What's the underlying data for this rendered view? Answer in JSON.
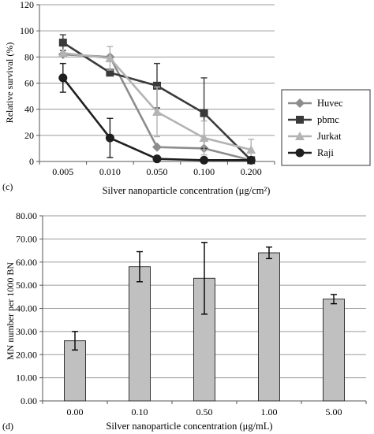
{
  "chart_data": [
    {
      "type": "line",
      "panel_label": "(c)",
      "xlabel": "Silver nanoparticle concentration (μg/cm²)",
      "ylabel": "Relative survival (%)",
      "categories": [
        "0.005",
        "0.010",
        "0.050",
        "0.100",
        "0.200"
      ],
      "ylim": [
        0,
        120
      ],
      "yticks": [
        0,
        20,
        40,
        60,
        80,
        100,
        120
      ],
      "grid": true,
      "legend_position": "right",
      "series": [
        {
          "name": "Huvec",
          "color": "#8c8c8c",
          "marker": "diamond",
          "values": [
            82,
            80,
            11,
            10,
            1
          ],
          "errors": [
            null,
            null,
            null,
            null,
            null
          ]
        },
        {
          "name": "pbmc",
          "color": "#3a3a3a",
          "marker": "square",
          "values": [
            91,
            68,
            58,
            37,
            1
          ],
          "errors": [
            6,
            null,
            17,
            27,
            null
          ]
        },
        {
          "name": "Jurkat",
          "color": "#b3b3b3",
          "marker": "triangle",
          "values": [
            83,
            79,
            38,
            18,
            9
          ],
          "errors": [
            null,
            9,
            19,
            13,
            8
          ]
        },
        {
          "name": "Raji",
          "color": "#1f1f1f",
          "marker": "circle",
          "values": [
            64,
            18,
            2,
            1,
            1
          ],
          "errors": [
            11,
            15,
            null,
            null,
            null
          ]
        }
      ]
    },
    {
      "type": "bar",
      "panel_label": "(d)",
      "xlabel": "Silver nanoparticle concentration (μg/mL)",
      "ylabel": "MN number per 1000 BN",
      "categories": [
        "0.00",
        "0.10",
        "0.50",
        "1.00",
        "5.00"
      ],
      "values": [
        26.0,
        58.0,
        53.0,
        64.0,
        44.0
      ],
      "errors": [
        4.0,
        6.5,
        15.5,
        2.5,
        2.0
      ],
      "ylim": [
        0,
        80
      ],
      "yticks": [
        "0.00",
        "10.00",
        "20.00",
        "30.00",
        "40.00",
        "50.00",
        "60.00",
        "70.00",
        "80.00"
      ],
      "bar_color": "#c0c0c0",
      "grid": true
    }
  ]
}
